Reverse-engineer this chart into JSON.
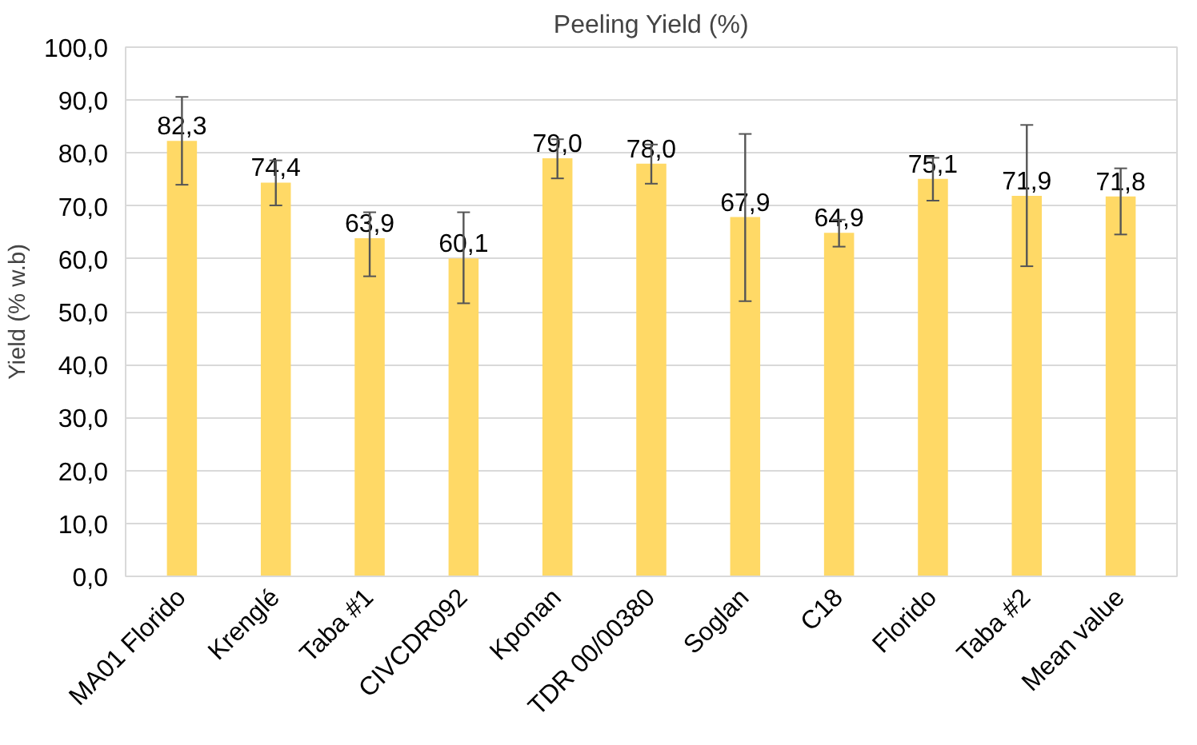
{
  "chart_data": {
    "type": "bar",
    "title": "Peeling Yield (%)",
    "ylabel": "Yield (% w.b)",
    "categories": [
      "MA01 Florido",
      "Krenglé",
      "Taba #1",
      "CIVCDR092",
      "Kponan",
      "TDR 00/00380",
      "Soglan",
      "C18",
      "Florido",
      "Taba #2",
      "Mean value"
    ],
    "values": [
      82.3,
      74.4,
      63.9,
      60.1,
      79.0,
      78.0,
      67.9,
      64.9,
      75.1,
      71.9,
      71.8
    ],
    "value_labels": [
      "82,3",
      "74,4",
      "63,9",
      "60,1",
      "79,0",
      "78,0",
      "67,9",
      "64,9",
      "75,1",
      "71,9",
      "71,8"
    ],
    "errors": [
      [
        74.0,
        90.6
      ],
      [
        70.1,
        78.6
      ],
      [
        56.7,
        68.8
      ],
      [
        51.6,
        68.8
      ],
      [
        75.2,
        82.6
      ],
      [
        74.2,
        81.6
      ],
      [
        52.0,
        83.6
      ],
      [
        62.3,
        67.4
      ],
      [
        71.0,
        79.1
      ],
      [
        58.6,
        85.3
      ],
      [
        64.6,
        77.1
      ]
    ],
    "color": "#ffd966",
    "ylim": [
      0,
      100
    ],
    "yticks": [
      {
        "value": 0,
        "label": "0,0"
      },
      {
        "value": 10,
        "label": "10,0"
      },
      {
        "value": 20,
        "label": "20,0"
      },
      {
        "value": 30,
        "label": "30,0"
      },
      {
        "value": 40,
        "label": "40,0"
      },
      {
        "value": 50,
        "label": "50,0"
      },
      {
        "value": 60,
        "label": "60,0"
      },
      {
        "value": 70,
        "label": "70,0"
      },
      {
        "value": 80,
        "label": "80,0"
      },
      {
        "value": 90,
        "label": "90,0"
      },
      {
        "value": 100,
        "label": "100,0"
      }
    ],
    "grid": "y"
  }
}
